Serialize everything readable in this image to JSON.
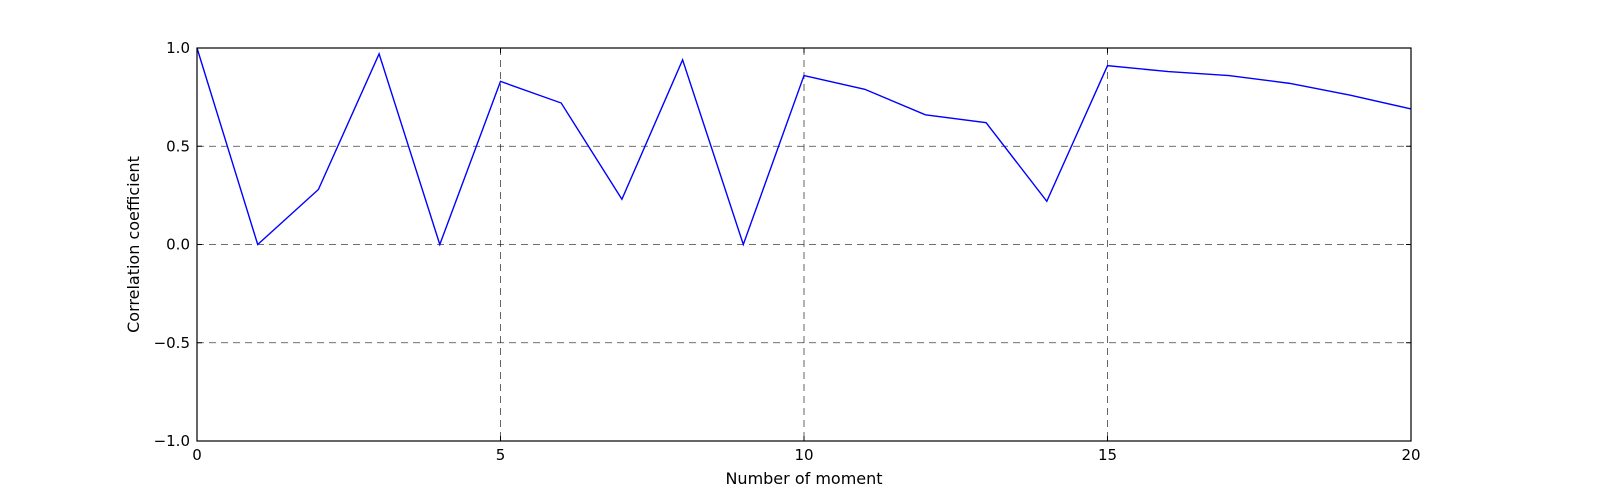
{
  "chart_data": {
    "type": "line",
    "title": "",
    "xlabel": "Number of moment",
    "ylabel": "Correlation coefficient",
    "xlim": [
      0,
      20
    ],
    "ylim": [
      -1.0,
      1.0
    ],
    "x_ticks": [
      0,
      5,
      10,
      15,
      20
    ],
    "x_tick_labels": [
      "0",
      "5",
      "10",
      "15",
      "20"
    ],
    "y_ticks": [
      -1.0,
      -0.5,
      0.0,
      0.5,
      1.0
    ],
    "y_tick_labels": [
      "−1.0",
      "−0.5",
      "0.0",
      "0.5",
      "1.0"
    ],
    "grid": true,
    "grid_style": "dashed",
    "series": [
      {
        "color": "#0000ff",
        "x": [
          0,
          1,
          2,
          3,
          4,
          5,
          6,
          7,
          8,
          9,
          10,
          11,
          12,
          13,
          14,
          15,
          16,
          17,
          18,
          19,
          20
        ],
        "y": [
          1.0,
          0.0,
          0.28,
          0.97,
          0.0,
          0.83,
          0.72,
          0.23,
          0.94,
          0.0,
          0.86,
          0.79,
          0.66,
          0.62,
          0.22,
          0.91,
          0.88,
          0.86,
          0.82,
          0.76,
          0.69
        ]
      }
    ]
  }
}
